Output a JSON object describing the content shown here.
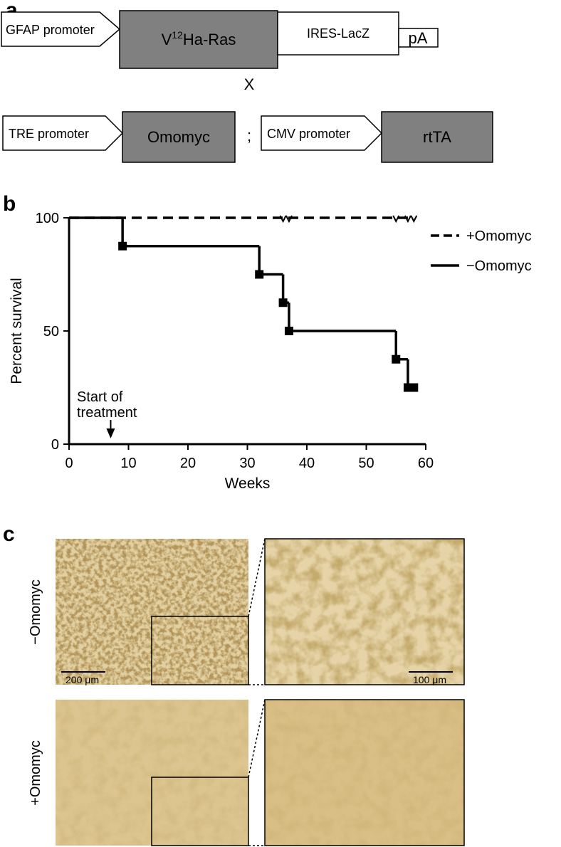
{
  "panel_labels": {
    "a": "a",
    "b": "b",
    "c": "c"
  },
  "construct_1": {
    "promoter": "GFAP promoter",
    "gene_prefix": "V",
    "gene_superscript": "12",
    "gene_suffix": "Ha-Ras",
    "ires": "IRES-LacZ",
    "polya": "pA"
  },
  "cross_sign": "X",
  "construct_2": {
    "promoter": "TRE promoter",
    "gene": "Omomyc"
  },
  "separator": ";",
  "construct_3": {
    "promoter": "CMV promoter",
    "gene": "rtTA"
  },
  "chart_data": {
    "type": "line",
    "drawstyle": "steps-post",
    "xlabel": "Weeks",
    "ylabel": "Percent survival",
    "xlim": [
      0,
      60
    ],
    "ylim": [
      0,
      100
    ],
    "xticks": [
      0,
      10,
      20,
      30,
      40,
      50,
      60
    ],
    "yticks": [
      0,
      50,
      100
    ],
    "legend": "right",
    "series": [
      {
        "name": "+Omomyc",
        "color": "#000000",
        "dash": true,
        "x": [
          0,
          58
        ],
        "values": [
          100,
          100
        ],
        "censored_x": [
          36,
          37,
          55,
          57,
          58
        ]
      },
      {
        "name": "−Omomyc",
        "color": "#000000",
        "dash": false,
        "marker": "square",
        "x": [
          0,
          9,
          32,
          36,
          37,
          55,
          57,
          58
        ],
        "values": [
          100,
          87.5,
          75,
          62.5,
          50,
          37.5,
          25,
          25
        ]
      }
    ],
    "annotation": {
      "lines": [
        "Start of",
        "treatment"
      ],
      "x": 7
    }
  },
  "micrographs": {
    "rows": [
      "−Omomyc",
      "+Omomyc"
    ],
    "scale_bars": [
      "200 μm",
      "100 μm"
    ]
  }
}
